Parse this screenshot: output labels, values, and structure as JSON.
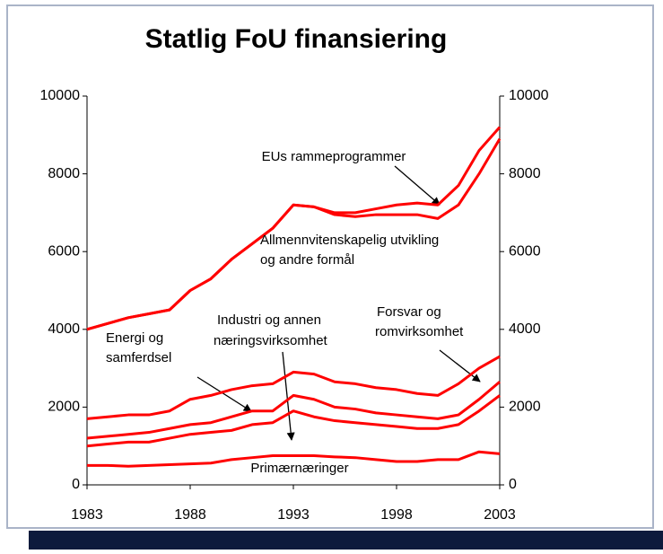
{
  "chart_data": {
    "type": "line",
    "title": "Statlig FoU finansiering",
    "x": [
      1983,
      1984,
      1985,
      1986,
      1987,
      1988,
      1989,
      1990,
      1991,
      1992,
      1993,
      1994,
      1995,
      1996,
      1997,
      1998,
      1999,
      2000,
      2001,
      2002,
      2003
    ],
    "xticks": [
      1983,
      1988,
      1993,
      1998,
      2003
    ],
    "xlim": [
      1983,
      2003
    ],
    "ylim": [
      0,
      10000
    ],
    "yticks": [
      0,
      2000,
      4000,
      6000,
      8000,
      10000
    ],
    "y2lim": [
      0,
      10000
    ],
    "y2ticks": [
      0,
      2000,
      4000,
      6000,
      8000,
      10000
    ],
    "series": [
      {
        "color": "#ff0000",
        "values": [
          500,
          500,
          480,
          500,
          520,
          540,
          560,
          650,
          700,
          750,
          750,
          750,
          720,
          700,
          650,
          600,
          600,
          650,
          650,
          850,
          800
        ]
      },
      {
        "color": "#ff0000",
        "values": [
          1000,
          1050,
          1100,
          1100,
          1200,
          1300,
          1350,
          1400,
          1550,
          1600,
          1900,
          1750,
          1650,
          1600,
          1550,
          1500,
          1450,
          1450,
          1550,
          1900,
          2300
        ]
      },
      {
        "color": "#ff0000",
        "values": [
          1200,
          1250,
          1300,
          1350,
          1450,
          1550,
          1600,
          1750,
          1900,
          1900,
          2300,
          2200,
          2000,
          1950,
          1850,
          1800,
          1750,
          1700,
          1800,
          2200,
          2650
        ]
      },
      {
        "color": "#ff0000",
        "values": [
          1700,
          1750,
          1800,
          1800,
          1900,
          2200,
          2300,
          2450,
          2550,
          2600,
          2900,
          2850,
          2650,
          2600,
          2500,
          2450,
          2350,
          2300,
          2600,
          3000,
          3300
        ]
      },
      {
        "color": "#ff0000",
        "values": [
          4000,
          4150,
          4300,
          4400,
          4500,
          5000,
          5300,
          5800,
          6200,
          6600,
          7200,
          7150,
          6950,
          6900,
          6950,
          6950,
          6950,
          6850,
          7200,
          8000,
          8900
        ]
      },
      {
        "color": "#ff0000",
        "values": [
          4000,
          4150,
          4300,
          4400,
          4500,
          5000,
          5300,
          5800,
          6200,
          6600,
          7200,
          7150,
          7000,
          7000,
          7100,
          7200,
          7250,
          7200,
          7700,
          8600,
          9200
        ]
      }
    ],
    "annotations": [
      "EUs rammeprogrammer",
      "Allmennvitenskapelig utvikling",
      "og andre formål",
      "Energi og",
      "samferdsel",
      "Industri og annen",
      "næringsvirksomhet",
      "Forsvar og",
      "romvirksomhet",
      "Primærnæringer"
    ]
  }
}
